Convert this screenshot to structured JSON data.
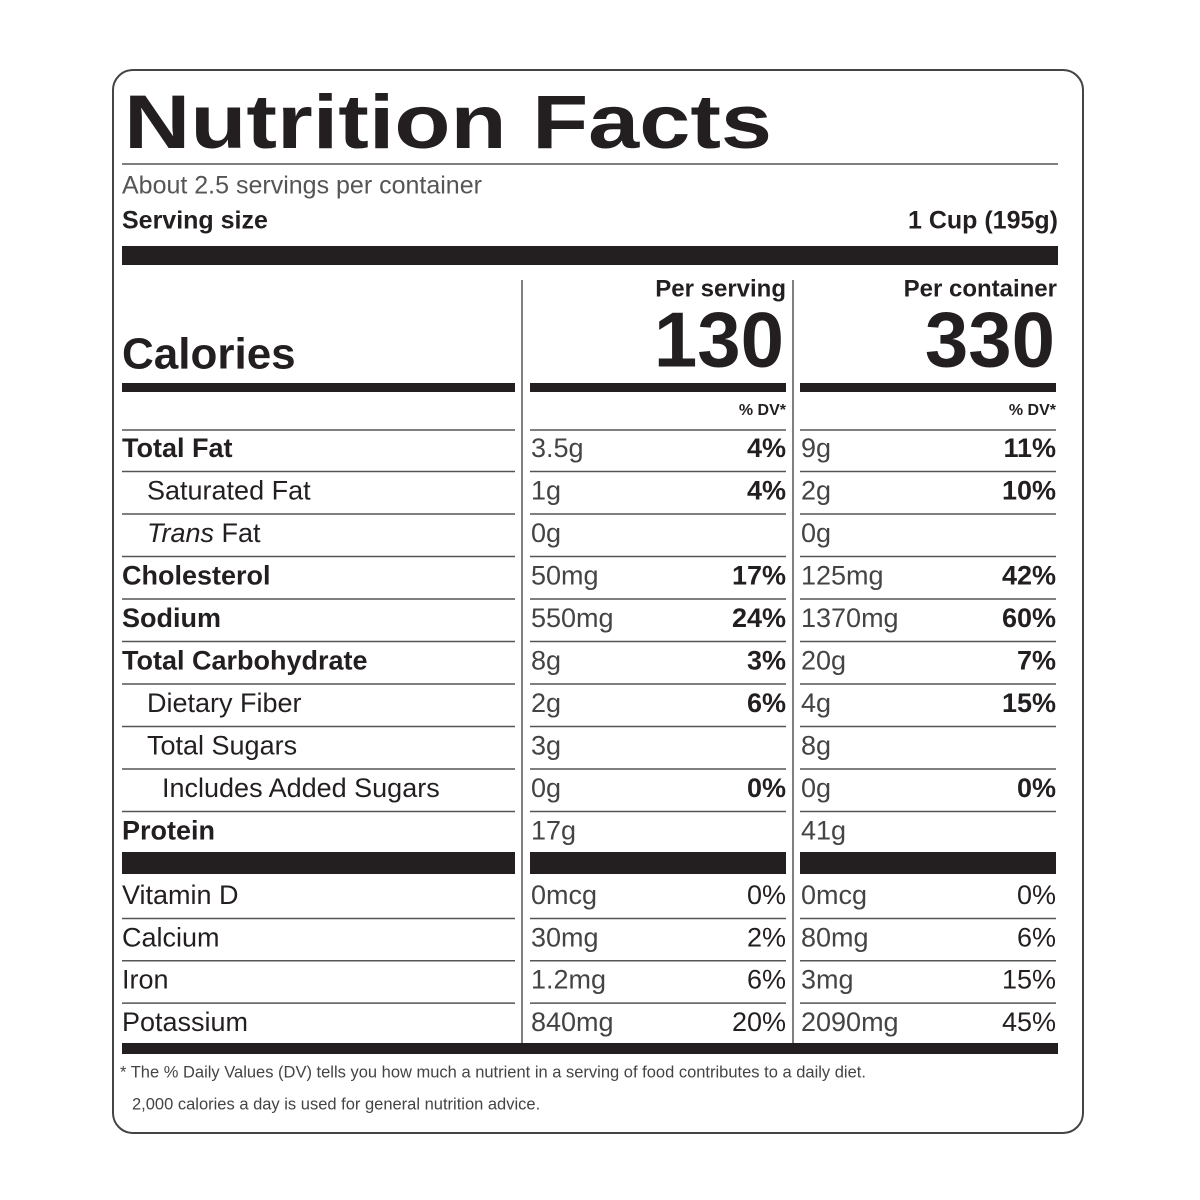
{
  "title": "Nutrition Facts",
  "servings": "About 2.5 servings per container",
  "serving_size": {
    "label": "Serving size",
    "value": "1 Cup (195g)"
  },
  "columns": [
    "Per serving",
    "Per container"
  ],
  "calories": {
    "label": "Calories",
    "per_serving": "130",
    "per_container": "330"
  },
  "dv_header": [
    "% DV*",
    "% DV*"
  ],
  "nutrients": [
    {
      "name": "Total Fat",
      "bold": true,
      "indent": 0,
      "per_serving": {
        "amount": "3.5g",
        "dv": "4%"
      },
      "per_container": {
        "amount": "9g",
        "dv": "11%"
      }
    },
    {
      "name": "Saturated Fat",
      "bold": false,
      "indent": 1,
      "per_serving": {
        "amount": "1g",
        "dv": "4%"
      },
      "per_container": {
        "amount": "2g",
        "dv": "10%"
      }
    },
    {
      "italic": "Trans",
      "name": "Fat",
      "bold": false,
      "indent": 1,
      "per_serving": {
        "amount": "0g"
      },
      "per_container": {
        "amount": "0g"
      }
    },
    {
      "name": "Cholesterol",
      "bold": true,
      "indent": 0,
      "per_serving": {
        "amount": "50mg",
        "dv": "17%"
      },
      "per_container": {
        "amount": "125mg",
        "dv": "42%"
      }
    },
    {
      "name": "Sodium",
      "bold": true,
      "indent": 0,
      "per_serving": {
        "amount": "550mg",
        "dv": "24%"
      },
      "per_container": {
        "amount": "1370mg",
        "dv": "60%"
      }
    },
    {
      "name": "Total Carbohydrate",
      "bold": true,
      "indent": 0,
      "per_serving": {
        "amount": "8g",
        "dv": "3%"
      },
      "per_container": {
        "amount": "20g",
        "dv": "7%"
      }
    },
    {
      "name": "Dietary Fiber",
      "bold": false,
      "indent": 1,
      "per_serving": {
        "amount": "2g",
        "dv": "6%"
      },
      "per_container": {
        "amount": "4g",
        "dv": "15%"
      }
    },
    {
      "name": "Total Sugars",
      "bold": false,
      "indent": 1,
      "per_serving": {
        "amount": "3g"
      },
      "per_container": {
        "amount": "8g"
      }
    },
    {
      "name": "Includes Added Sugars",
      "bold": false,
      "indent": 2,
      "per_serving": {
        "amount": "0g",
        "dv": "0%"
      },
      "per_container": {
        "amount": "0g",
        "dv": "0%"
      }
    },
    {
      "name": "Protein",
      "bold": true,
      "indent": 0,
      "per_serving": {
        "amount": "17g"
      },
      "per_container": {
        "amount": "41g"
      }
    }
  ],
  "vitamins": [
    {
      "name": "Vitamin D",
      "per_serving": {
        "amount": "0mcg",
        "dv": "0%"
      },
      "per_container": {
        "amount": "0mcg",
        "dv": "0%"
      }
    },
    {
      "name": "Calcium",
      "per_serving": {
        "amount": "30mg",
        "dv": "2%"
      },
      "per_container": {
        "amount": "80mg",
        "dv": "6%"
      }
    },
    {
      "name": "Iron",
      "per_serving": {
        "amount": "1.2mg",
        "dv": "6%"
      },
      "per_container": {
        "amount": "3mg",
        "dv": "15%"
      }
    },
    {
      "name": "Potassium",
      "per_serving": {
        "amount": "840mg",
        "dv": "20%"
      },
      "per_container": {
        "amount": "2090mg",
        "dv": "45%"
      }
    }
  ],
  "footnote": [
    "* The % Daily Values (DV) tells you how much a nutrient in a serving of food contributes to a daily diet.",
    "2,000 calories a day is used for general nutrition advice."
  ]
}
